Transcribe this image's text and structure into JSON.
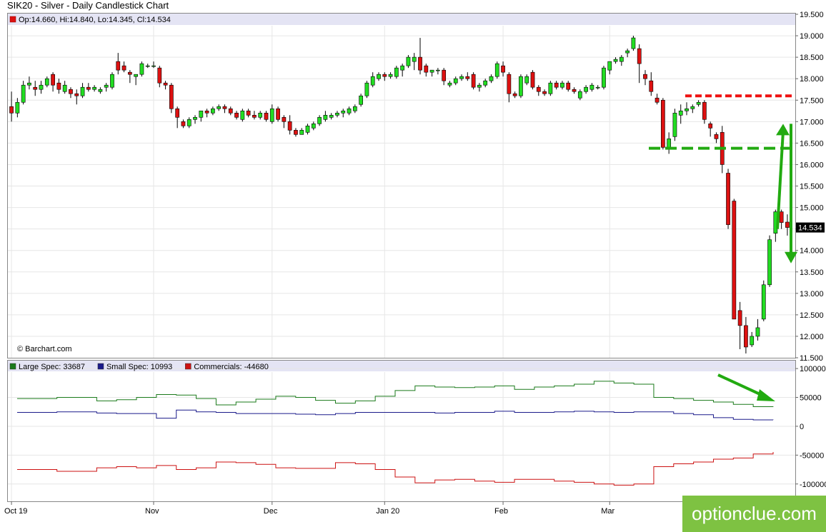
{
  "title": "SIK20 - Silver - Daily Candlestick Chart",
  "ohlc_label": "Op:14.660, Hi:14.840, Lo:14.345, Cl:14.534",
  "source": "© Barchart.com",
  "watermark": "optionclue.com",
  "colors": {
    "up": "#22dd22",
    "down": "#dd1111",
    "large_spec": "#1a7a1a",
    "small_spec": "#1a1a8a",
    "commercials": "#cc1111",
    "arrow": "#22aa11",
    "resistance": "#ee1111",
    "support": "#22aa11",
    "header_bar": "#e4e4f4"
  },
  "chart_data": [
    {
      "type": "candlestick",
      "title": "SIK20 - Silver - Daily Candlestick Chart",
      "ylim": [
        11.5,
        19.5
      ],
      "y_ticks": [
        "19.500",
        "19.000",
        "18.500",
        "18.000",
        "17.500",
        "17.000",
        "16.500",
        "16.000",
        "15.500",
        "15.000",
        "14.500",
        "14.000",
        "13.500",
        "13.000",
        "12.500",
        "12.000",
        "11.500"
      ],
      "x_tick_labels": [
        "Oct 19",
        "Nov",
        "Dec",
        "Jan 20",
        "Feb",
        "Mar"
      ],
      "x_tick_index": [
        0,
        24,
        44,
        63,
        83,
        101
      ],
      "last_price_label": "14.534",
      "candles": [
        [
          17.35,
          17.7,
          17.0,
          17.2
        ],
        [
          17.2,
          17.55,
          17.1,
          17.45
        ],
        [
          17.45,
          17.95,
          17.4,
          17.85
        ],
        [
          17.85,
          18.05,
          17.75,
          17.9
        ],
        [
          17.8,
          17.95,
          17.6,
          17.75
        ],
        [
          17.75,
          17.95,
          17.65,
          17.85
        ],
        [
          17.85,
          18.05,
          17.8,
          18.0
        ],
        [
          18.1,
          18.15,
          17.7,
          17.85
        ],
        [
          17.9,
          18.0,
          17.65,
          17.75
        ],
        [
          17.7,
          17.95,
          17.65,
          17.85
        ],
        [
          17.75,
          17.8,
          17.55,
          17.65
        ],
        [
          17.65,
          17.75,
          17.4,
          17.6
        ],
        [
          17.6,
          17.9,
          17.55,
          17.8
        ],
        [
          17.8,
          17.9,
          17.7,
          17.75
        ],
        [
          17.75,
          17.85,
          17.7,
          17.8
        ],
        [
          17.7,
          17.8,
          17.65,
          17.75
        ],
        [
          17.8,
          17.9,
          17.7,
          17.85
        ],
        [
          17.8,
          18.15,
          17.75,
          18.1
        ],
        [
          18.4,
          18.6,
          18.1,
          18.2
        ],
        [
          18.3,
          18.4,
          18.15,
          18.2
        ],
        [
          18.15,
          18.2,
          17.9,
          18.1
        ],
        [
          18.05,
          18.1,
          17.85,
          18.1
        ],
        [
          18.1,
          18.4,
          18.05,
          18.35
        ],
        [
          18.3,
          18.35,
          18.25,
          18.3
        ],
        [
          18.3,
          18.4,
          18.25,
          18.3
        ],
        [
          18.25,
          18.3,
          17.8,
          17.9
        ],
        [
          17.9,
          17.95,
          17.75,
          17.85
        ],
        [
          17.85,
          17.9,
          17.2,
          17.3
        ],
        [
          17.3,
          17.35,
          16.85,
          17.1
        ],
        [
          17.0,
          17.05,
          16.85,
          16.9
        ],
        [
          16.9,
          17.1,
          16.85,
          17.05
        ],
        [
          17.05,
          17.15,
          16.95,
          17.1
        ],
        [
          17.1,
          17.25,
          17.0,
          17.25
        ],
        [
          17.25,
          17.3,
          17.1,
          17.2
        ],
        [
          17.2,
          17.35,
          17.15,
          17.3
        ],
        [
          17.3,
          17.4,
          17.25,
          17.35
        ],
        [
          17.35,
          17.4,
          17.2,
          17.3
        ],
        [
          17.3,
          17.35,
          17.15,
          17.2
        ],
        [
          17.2,
          17.25,
          17.05,
          17.1
        ],
        [
          17.05,
          17.3,
          17.0,
          17.25
        ],
        [
          17.25,
          17.3,
          17.1,
          17.15
        ],
        [
          17.15,
          17.25,
          17.05,
          17.1
        ],
        [
          17.1,
          17.25,
          17.05,
          17.2
        ],
        [
          17.2,
          17.25,
          17.0,
          17.05
        ],
        [
          17.0,
          17.4,
          16.95,
          17.3
        ],
        [
          17.3,
          17.35,
          17.0,
          17.05
        ],
        [
          17.1,
          17.15,
          16.85,
          17.0
        ],
        [
          17.0,
          17.15,
          16.7,
          16.8
        ],
        [
          16.8,
          16.85,
          16.65,
          16.7
        ],
        [
          16.7,
          16.85,
          16.7,
          16.8
        ],
        [
          16.75,
          16.95,
          16.7,
          16.9
        ],
        [
          16.85,
          17.0,
          16.8,
          16.95
        ],
        [
          16.95,
          17.15,
          16.9,
          17.1
        ],
        [
          17.05,
          17.25,
          17.0,
          17.15
        ],
        [
          17.1,
          17.2,
          17.05,
          17.15
        ],
        [
          17.15,
          17.25,
          17.1,
          17.2
        ],
        [
          17.2,
          17.3,
          17.1,
          17.25
        ],
        [
          17.2,
          17.35,
          17.15,
          17.3
        ],
        [
          17.25,
          17.4,
          17.2,
          17.35
        ],
        [
          17.4,
          17.65,
          17.35,
          17.6
        ],
        [
          17.6,
          17.95,
          17.55,
          17.9
        ],
        [
          17.85,
          18.15,
          17.8,
          18.05
        ],
        [
          18.0,
          18.15,
          17.95,
          18.1
        ],
        [
          18.1,
          18.15,
          17.95,
          18.05
        ],
        [
          18.05,
          18.15,
          18.0,
          18.1
        ],
        [
          18.05,
          18.3,
          18.0,
          18.25
        ],
        [
          18.2,
          18.35,
          18.05,
          18.3
        ],
        [
          18.3,
          18.55,
          18.25,
          18.5
        ],
        [
          18.4,
          18.6,
          18.2,
          18.5
        ],
        [
          18.5,
          18.95,
          18.1,
          18.2
        ],
        [
          18.3,
          18.35,
          18.05,
          18.15
        ],
        [
          18.15,
          18.2,
          18.05,
          18.2
        ],
        [
          18.2,
          18.25,
          18.1,
          18.2
        ],
        [
          18.2,
          18.25,
          17.85,
          17.95
        ],
        [
          17.85,
          17.95,
          17.8,
          17.9
        ],
        [
          17.9,
          18.05,
          17.85,
          18.0
        ],
        [
          18.0,
          18.1,
          17.95,
          18.05
        ],
        [
          18.05,
          18.15,
          17.95,
          18.0
        ],
        [
          18.1,
          18.15,
          17.75,
          17.8
        ],
        [
          17.8,
          17.9,
          17.7,
          17.85
        ],
        [
          17.85,
          18.0,
          17.8,
          17.95
        ],
        [
          17.95,
          18.1,
          17.9,
          18.05
        ],
        [
          18.05,
          18.4,
          18.0,
          18.35
        ],
        [
          18.3,
          18.4,
          18.05,
          18.15
        ],
        [
          18.1,
          18.15,
          17.45,
          17.65
        ],
        [
          17.65,
          17.7,
          17.55,
          17.6
        ],
        [
          17.6,
          18.1,
          17.55,
          18.05
        ],
        [
          17.9,
          18.1,
          17.85,
          18.05
        ],
        [
          18.15,
          18.2,
          17.75,
          17.8
        ],
        [
          17.8,
          17.85,
          17.6,
          17.7
        ],
        [
          17.7,
          17.75,
          17.6,
          17.65
        ],
        [
          17.65,
          17.95,
          17.6,
          17.9
        ],
        [
          17.9,
          17.95,
          17.75,
          17.8
        ],
        [
          17.8,
          17.95,
          17.75,
          17.9
        ],
        [
          17.9,
          17.95,
          17.7,
          17.75
        ],
        [
          17.75,
          17.8,
          17.65,
          17.7
        ],
        [
          17.55,
          17.75,
          17.5,
          17.7
        ],
        [
          17.7,
          17.85,
          17.65,
          17.8
        ],
        [
          17.75,
          17.9,
          17.7,
          17.85
        ],
        [
          17.8,
          17.85,
          17.75,
          17.8
        ],
        [
          17.8,
          18.3,
          17.75,
          18.25
        ],
        [
          18.2,
          18.4,
          18.1,
          18.4
        ],
        [
          18.4,
          18.5,
          18.35,
          18.45
        ],
        [
          18.4,
          18.55,
          18.3,
          18.5
        ],
        [
          18.6,
          18.7,
          18.5,
          18.65
        ],
        [
          18.7,
          19.0,
          18.65,
          18.95
        ],
        [
          18.7,
          18.8,
          17.9,
          18.35
        ],
        [
          18.1,
          18.2,
          17.85,
          18.0
        ],
        [
          17.95,
          18.15,
          17.6,
          17.7
        ],
        [
          17.55,
          17.65,
          17.4,
          17.45
        ],
        [
          17.5,
          17.55,
          16.35,
          16.4
        ],
        [
          16.4,
          16.75,
          16.25,
          16.6
        ],
        [
          16.65,
          17.3,
          16.55,
          17.2
        ],
        [
          17.15,
          17.4,
          16.95,
          17.25
        ],
        [
          17.25,
          17.45,
          17.15,
          17.3
        ],
        [
          17.3,
          17.4,
          17.2,
          17.35
        ],
        [
          17.4,
          17.5,
          17.35,
          17.45
        ],
        [
          17.45,
          17.5,
          16.95,
          17.05
        ],
        [
          16.95,
          17.0,
          16.65,
          16.85
        ],
        [
          16.7,
          16.75,
          16.5,
          16.6
        ],
        [
          16.75,
          16.9,
          15.8,
          16.0
        ],
        [
          15.8,
          15.9,
          14.5,
          14.6
        ],
        [
          15.15,
          15.2,
          12.4,
          12.4
        ],
        [
          12.6,
          12.8,
          11.7,
          12.25
        ],
        [
          12.25,
          12.45,
          11.6,
          11.75
        ],
        [
          11.8,
          12.1,
          11.75,
          12.0
        ],
        [
          12.0,
          12.4,
          11.9,
          12.2
        ],
        [
          12.4,
          13.3,
          12.35,
          13.2
        ],
        [
          13.2,
          14.35,
          13.15,
          14.25
        ],
        [
          14.4,
          14.95,
          14.2,
          14.9
        ],
        [
          14.9,
          14.95,
          14.5,
          14.65
        ],
        [
          14.66,
          14.84,
          14.345,
          14.534
        ]
      ],
      "annotations": {
        "resistance_level": 17.6,
        "support_level": 16.38,
        "arrow_up": [
          14.5,
          16.95
        ],
        "arrow_down": [
          16.95,
          13.7
        ]
      }
    },
    {
      "type": "line",
      "title": "COT",
      "ylim": [
        -130000,
        115000
      ],
      "y_ticks": [
        "100000",
        "50000",
        "0",
        "-50000",
        "-100000"
      ],
      "series": [
        {
          "name": "Large Spec: 33687",
          "color": "#1a7a1a",
          "values": [
            48000,
            48000,
            50000,
            50000,
            44000,
            46000,
            50000,
            55000,
            54000,
            48000,
            37000,
            42000,
            47000,
            52000,
            50000,
            45000,
            40000,
            44000,
            52000,
            62000,
            70000,
            68000,
            67000,
            68000,
            70000,
            64000,
            68000,
            70000,
            73000,
            78000,
            75000,
            73000,
            50000,
            48000,
            45000,
            42000,
            38000,
            34000,
            33687
          ]
        },
        {
          "name": "Small Spec: 10993",
          "color": "#1a1a8a",
          "values": [
            24000,
            24000,
            25000,
            25000,
            23000,
            22000,
            22000,
            14000,
            28000,
            25000,
            24000,
            22000,
            22000,
            22000,
            21000,
            20000,
            22000,
            24000,
            24000,
            24000,
            24000,
            23000,
            24000,
            24000,
            26000,
            24000,
            24000,
            25000,
            26000,
            25000,
            24000,
            25000,
            25000,
            22000,
            20000,
            15000,
            12000,
            11000,
            10993
          ]
        },
        {
          "name": "Commercials: -44680",
          "color": "#cc1111",
          "values": [
            -75000,
            -75000,
            -78000,
            -78000,
            -72000,
            -70000,
            -72000,
            -68000,
            -75000,
            -72000,
            -62000,
            -63000,
            -66000,
            -72000,
            -73000,
            -73000,
            -63000,
            -65000,
            -75000,
            -88000,
            -98000,
            -93000,
            -92000,
            -95000,
            -97000,
            -92000,
            -92000,
            -95000,
            -97000,
            -100000,
            -102000,
            -100000,
            -70000,
            -65000,
            -62000,
            -57000,
            -55000,
            -48000,
            -44680
          ]
        }
      ]
    }
  ]
}
